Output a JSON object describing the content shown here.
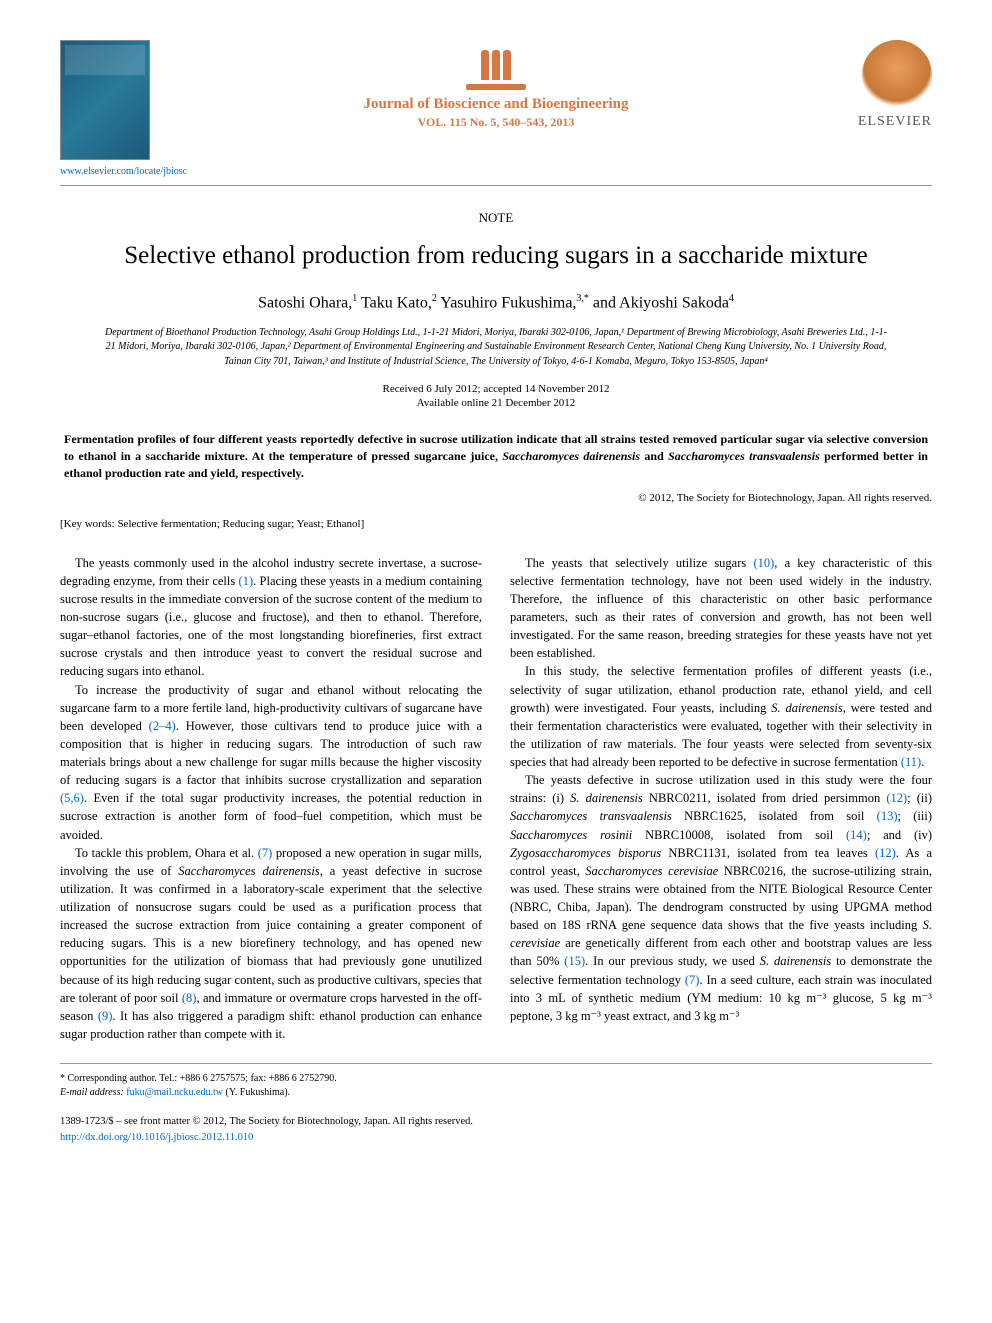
{
  "header": {
    "journal_link": "www.elsevier.com/locate/jbiosc",
    "journal_name": "Journal of Bioscience and Bioengineering",
    "journal_vol": "VOL. 115 No. 5, 540–543, 2013",
    "elsevier": "ELSEVIER"
  },
  "note_label": "NOTE",
  "title": "Selective ethanol production from reducing sugars in a saccharide mixture",
  "authors_html": "Satoshi Ohara,<sup>1</sup> Taku Kato,<sup>2</sup> Yasuhiro Fukushima,<sup>3,*</sup> and Akiyoshi Sakoda<sup>4</sup>",
  "affiliations": "Department of Bioethanol Production Technology, Asahi Group Holdings Ltd., 1-1-21 Midori, Moriya, Ibaraki 302-0106, Japan,¹ Department of Brewing Microbiology, Asahi Breweries Ltd., 1-1-21 Midori, Moriya, Ibaraki 302-0106, Japan,² Department of Environmental Engineering and Sustainable Environment Research Center, National Cheng Kung University, No. 1 University Road, Tainan City 701, Taiwan,³ and Institute of Industrial Science, The University of Tokyo, 4-6-1 Komaba, Meguro, Tokyo 153-8505, Japan⁴",
  "dates": "Received 6 July 2012; accepted 14 November 2012",
  "dates2": "Available online 21 December 2012",
  "abstract_pre": "Fermentation profiles of four different yeasts reportedly defective in sucrose utilization indicate that all strains tested removed particular sugar via selective conversion to ethanol in a saccharide mixture. At the temperature of pressed sugarcane juice, ",
  "abstract_sp1": "Saccharomyces dairenensis",
  "abstract_mid": " and ",
  "abstract_sp2": "Saccharomyces transvaalensis",
  "abstract_post": " performed better in ethanol production rate and yield, respectively.",
  "copyright": "© 2012, The Society for Biotechnology, Japan. All rights reserved.",
  "keywords_label": "[Key words: ",
  "keywords": "Selective fermentation; Reducing sugar; Yeast; Ethanol]",
  "body": {
    "p1a": "The yeasts commonly used in the alcohol industry secrete invertase, a sucrose-degrading enzyme, from their cells ",
    "p1r1": "(1)",
    "p1b": ". Placing these yeasts in a medium containing sucrose results in the immediate conversion of the sucrose content of the medium to non-sucrose sugars (i.e., glucose and fructose), and then to ethanol. Therefore, sugar–ethanol factories, one of the most longstanding biorefineries, first extract sucrose crystals and then introduce yeast to convert the residual sucrose and reducing sugars into ethanol.",
    "p2a": "To increase the productivity of sugar and ethanol without relocating the sugarcane farm to a more fertile land, high-productivity cultivars of sugarcane have been developed ",
    "p2r1": "(2–4)",
    "p2b": ". However, those cultivars tend to produce juice with a composition that is higher in reducing sugars. The introduction of such raw materials brings about a new challenge for sugar mills because the higher viscosity of reducing sugars is a factor that inhibits sucrose crystallization and separation ",
    "p2r2": "(5,6)",
    "p2c": ". Even if the total sugar productivity increases, the potential reduction in sucrose extraction is another form of food–fuel competition, which must be avoided.",
    "p3a": "To tackle this problem, Ohara et al. ",
    "p3r1": "(7)",
    "p3b": " proposed a new operation in sugar mills, involving the use of ",
    "p3sp1": "Saccharomyces dairenensis",
    "p3c": ", a yeast defective in sucrose utilization. It was confirmed in a laboratory-scale experiment that the selective utilization of nonsucrose sugars could be used as a purification process that increased the sucrose extraction from juice containing a greater component of reducing sugars. This is a new biorefinery technology, and has opened new opportunities for the utilization of biomass that had previously gone unutilized because of its high reducing sugar content, such as productive cultivars, species that are tolerant of poor soil ",
    "p3r2": "(8)",
    "p3d": ", and immature or overmature crops harvested in the off-season ",
    "p3r3": "(9)",
    "p3e": ". It has also triggered a paradigm shift: ethanol production can enhance sugar production rather than compete with it.",
    "p4a": "The yeasts that selectively utilize sugars ",
    "p4r1": "(10)",
    "p4b": ", a key characteristic of this selective fermentation technology, have not been used widely in the industry. Therefore, the influence of this characteristic on other basic performance parameters, such as their rates of conversion and growth, has not been well investigated. For the same reason, breeding strategies for these yeasts have not yet been established.",
    "p5a": "In this study, the selective fermentation profiles of different yeasts (i.e., selectivity of sugar utilization, ethanol production rate, ethanol yield, and cell growth) were investigated. Four yeasts, including ",
    "p5sp1": "S. dairenensis",
    "p5b": ", were tested and their fermentation characteristics were evaluated, together with their selectivity in the utilization of raw materials. The four yeasts were selected from seventy-six species that had already been reported to be defective in sucrose fermentation ",
    "p5r1": "(11)",
    "p5c": ".",
    "p6a": "The yeasts defective in sucrose utilization used in this study were the four strains: (i) ",
    "p6sp1": "S. dairenensis",
    "p6b": " NBRC0211, isolated from dried persimmon ",
    "p6r1": "(12)",
    "p6c": "; (ii) ",
    "p6sp2": "Saccharomyces transvaalensis",
    "p6d": " NBRC1625, isolated from soil ",
    "p6r2": "(13)",
    "p6e": "; (iii) ",
    "p6sp3": "Saccharomyces rosinii",
    "p6f": " NBRC10008, isolated from soil ",
    "p6r3": "(14)",
    "p6g": "; and (iv) ",
    "p6sp4": "Zygosaccharomyces bisporus",
    "p6h": " NBRC1131, isolated from tea leaves ",
    "p6r4": "(12)",
    "p6i": ". As a control yeast, ",
    "p6sp5": "Saccharomyces cerevisiae",
    "p6j": " NBRC0216, the sucrose-utilizing strain, was used. These strains were obtained from the NITE Biological Resource Center (NBRC, Chiba, Japan). The dendrogram constructed by using UPGMA method based on 18S rRNA gene sequence data shows that the five yeasts including ",
    "p6sp6": "S. cerevisiae",
    "p6k": " are genetically different from each other and bootstrap values are less than 50% ",
    "p6r5": "(15)",
    "p6l": ". In our previous study, we used ",
    "p6sp7": "S. dairenensis",
    "p6m": " to demonstrate the selective fermentation technology ",
    "p6r6": "(7)",
    "p6n": ". In a seed culture, each strain was inoculated into 3 mL of synthetic medium (YM medium: 10 kg m⁻³ glucose, 5 kg m⁻³ peptone, 3 kg m⁻³ yeast extract, and 3 kg m⁻³"
  },
  "footnote": {
    "corresponding": "* Corresponding author. Tel.: +886 6 2757575; fax: +886 6 2752790.",
    "email_label": "E-mail address: ",
    "email": "fuku@mail.ncku.edu.tw",
    "email_post": " (Y. Fukushima)."
  },
  "bottom": {
    "issn": "1389-1723/$ – see front matter © 2012, The Society for Biotechnology, Japan. All rights reserved.",
    "doi": "http://dx.doi.org/10.1016/j.jbiosc.2012.11.010"
  }
}
